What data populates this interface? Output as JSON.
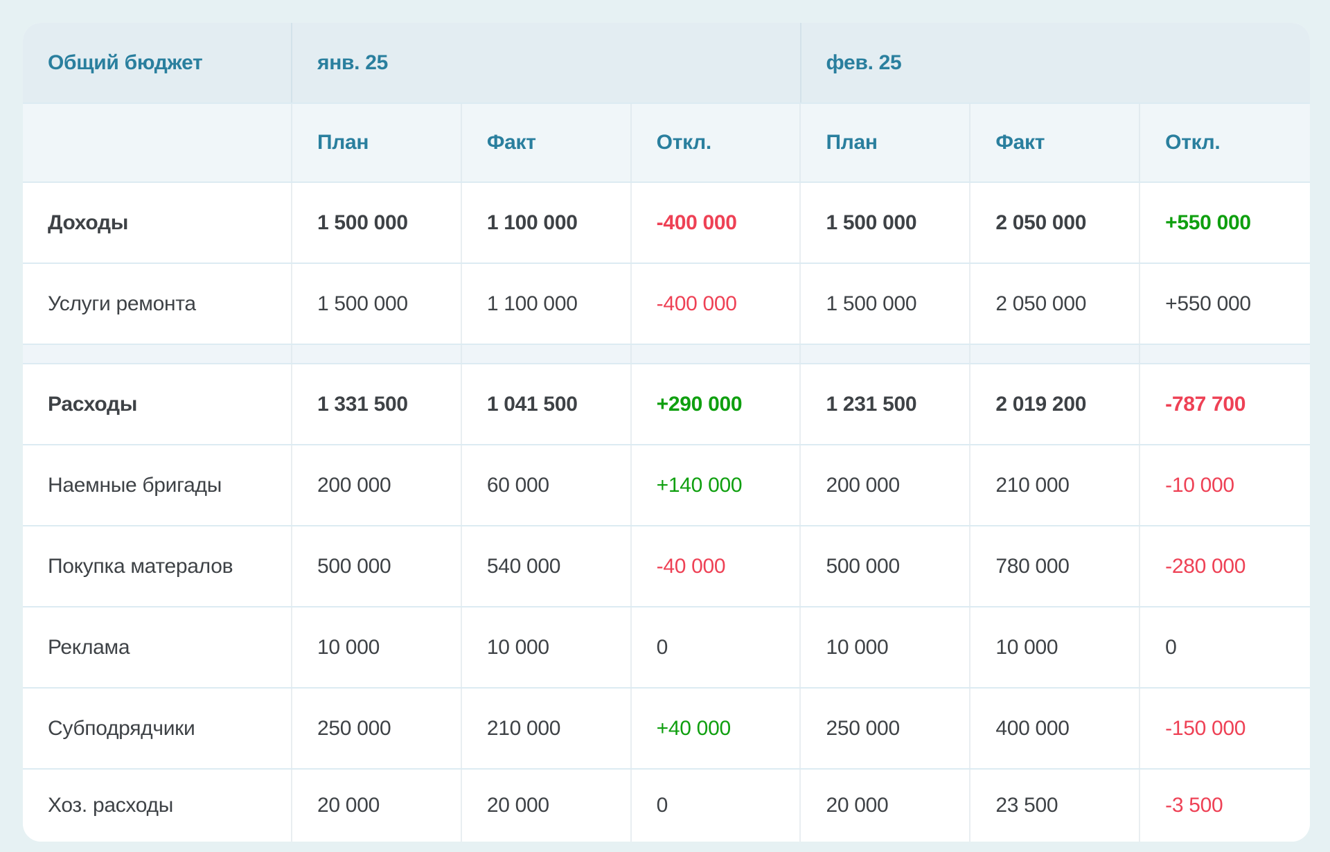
{
  "table": {
    "title": "Общий бюджет",
    "months": [
      {
        "label": "янв. 25"
      },
      {
        "label": "фев. 25"
      }
    ],
    "sub_headers": [
      "План",
      "Факт",
      "Откл."
    ],
    "colors": {
      "accent_teal": "#2a7f9e",
      "text_dark": "#3e4246",
      "negative_red": "#ee4155",
      "positive_green": "#0f9f0f",
      "page_background": "#e6f1f3",
      "header_background": "#e3edf2",
      "subheader_background": "#f0f6f9"
    },
    "rows": [
      {
        "label": "Доходы",
        "cells": [
          {
            "v": "1 500 000",
            "c": "dark"
          },
          {
            "v": "1 100 000",
            "c": "dark"
          },
          {
            "v": "-400 000",
            "c": "red"
          },
          {
            "v": "1 500 000",
            "c": "dark"
          },
          {
            "v": "2 050 000",
            "c": "dark"
          },
          {
            "v": "+550 000",
            "c": "green"
          }
        ]
      },
      {
        "label": "Услуги ремонта",
        "cells": [
          {
            "v": "1 500 000",
            "c": "dark"
          },
          {
            "v": "1 100 000",
            "c": "dark"
          },
          {
            "v": "-400 000",
            "c": "red"
          },
          {
            "v": "1 500 000",
            "c": "dark"
          },
          {
            "v": "2 050 000",
            "c": "dark"
          },
          {
            "v": "+550 000",
            "c": "dark"
          }
        ]
      },
      {
        "label": "Расходы",
        "cells": [
          {
            "v": "1 331 500",
            "c": "dark"
          },
          {
            "v": "1 041 500",
            "c": "dark"
          },
          {
            "v": "+290 000",
            "c": "green"
          },
          {
            "v": "1 231 500",
            "c": "dark"
          },
          {
            "v": "2 019 200",
            "c": "dark"
          },
          {
            "v": "-787 700",
            "c": "red"
          }
        ]
      },
      {
        "label": "Наемные бригады",
        "cells": [
          {
            "v": "200 000",
            "c": "dark"
          },
          {
            "v": "60 000",
            "c": "dark"
          },
          {
            "v": "+140 000",
            "c": "green"
          },
          {
            "v": "200 000",
            "c": "dark"
          },
          {
            "v": "210 000",
            "c": "dark"
          },
          {
            "v": "-10 000",
            "c": "red"
          }
        ]
      },
      {
        "label": "Покупка матералов",
        "cells": [
          {
            "v": "500 000",
            "c": "dark"
          },
          {
            "v": "540 000",
            "c": "dark"
          },
          {
            "v": "-40 000",
            "c": "red"
          },
          {
            "v": "500 000",
            "c": "dark"
          },
          {
            "v": "780 000",
            "c": "dark"
          },
          {
            "v": "-280 000",
            "c": "red"
          }
        ]
      },
      {
        "label": "Реклама",
        "cells": [
          {
            "v": "10 000",
            "c": "dark"
          },
          {
            "v": "10 000",
            "c": "dark"
          },
          {
            "v": "0",
            "c": "dark"
          },
          {
            "v": "10 000",
            "c": "dark"
          },
          {
            "v": "10 000",
            "c": "dark"
          },
          {
            "v": "0",
            "c": "dark"
          }
        ]
      },
      {
        "label": "Субподрядчики",
        "cells": [
          {
            "v": "250 000",
            "c": "dark"
          },
          {
            "v": "210 000",
            "c": "dark"
          },
          {
            "v": "+40 000",
            "c": "green"
          },
          {
            "v": "250 000",
            "c": "dark"
          },
          {
            "v": "400 000",
            "c": "dark"
          },
          {
            "v": "-150 000",
            "c": "red"
          }
        ]
      },
      {
        "label": "Хоз. расходы",
        "cells": [
          {
            "v": "20 000",
            "c": "dark"
          },
          {
            "v": "20 000",
            "c": "dark"
          },
          {
            "v": "0",
            "c": "dark"
          },
          {
            "v": "20 000",
            "c": "dark"
          },
          {
            "v": "23 500",
            "c": "dark"
          },
          {
            "v": "-3 500",
            "c": "red"
          }
        ]
      }
    ]
  }
}
